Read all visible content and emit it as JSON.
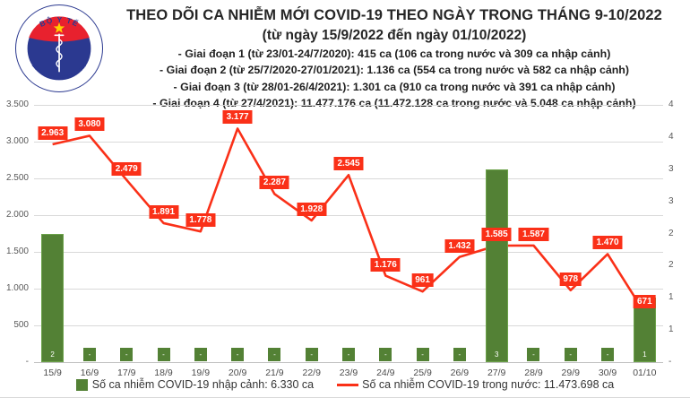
{
  "header": {
    "logo": {
      "top": "BỘ Y TẾ",
      "bottom": "MINISTRY OF HEALTH"
    },
    "title": "THEO DÕI CA NHIỄM MỚI COVID-19 THEO NGÀY TRONG THÁNG 9-10/2022",
    "subtitle": "(từ ngày 15/9/2022 đến ngày 01/10/2022)",
    "notes": [
      "- Giai đoạn 1 (từ 23/01-24/7/2020): 415 ca (106 ca trong nước và 309 ca nhập cảnh)",
      "- Giai đoạn 2 (từ 25/7/2020-27/01/2021): 1.136 ca (554 ca trong nước và 582 ca nhập cảnh)",
      "- Giai đoạn 3 (từ 28/01-26/4/2021): 1.301 ca (910 ca trong nước và 391 ca nhập cảnh)",
      "- Giai đoạn 4 (từ 27/4/2021): 11.477.176 ca (11.472.128 ca trong nước và 5.048 ca nhập cảnh)"
    ]
  },
  "chart_data": {
    "type": "combo-bar-line",
    "categories": [
      "15/9",
      "16/9",
      "17/9",
      "18/9",
      "19/9",
      "20/9",
      "21/9",
      "22/9",
      "23/9",
      "24/9",
      "25/9",
      "26/9",
      "27/9",
      "28/9",
      "29/9",
      "30/9",
      "01/10"
    ],
    "series": [
      {
        "name": "Số ca nhiễm COVID-19 nhập cảnh",
        "type": "bar",
        "axis": "right",
        "color": "#538135",
        "values": [
          2,
          0,
          0,
          0,
          0,
          0,
          0,
          0,
          0,
          0,
          0,
          0,
          3,
          0,
          0,
          0,
          1
        ],
        "labels": [
          "2",
          "-",
          "-",
          "-",
          "-",
          "-",
          "-",
          "-",
          "-",
          "-",
          "-",
          "-",
          "3",
          "-",
          "-",
          "-",
          "1"
        ]
      },
      {
        "name": "Số ca nhiễm COVID-19 trong nước",
        "type": "line",
        "axis": "left",
        "color": "#fa3018",
        "values": [
          2963,
          3080,
          2479,
          1891,
          1778,
          3177,
          2287,
          1928,
          2545,
          1176,
          961,
          1432,
          1585,
          1587,
          978,
          1470,
          671
        ],
        "labels": [
          "2.963",
          "3.080",
          "2.479",
          "1.891",
          "1.778",
          "3.177",
          "2.287",
          "1.928",
          "2.545",
          "1.176",
          "961",
          "1.432",
          "1.585",
          "1.587",
          "978",
          "1.470",
          "671"
        ]
      }
    ],
    "left_axis": {
      "max": 3500,
      "tick_values": [
        3500,
        3000,
        2500,
        2000,
        1500,
        1000,
        500,
        0
      ],
      "tick_labels": [
        "3.500",
        "3.000",
        "2.500",
        "2.000",
        "1.500",
        "1.000",
        "500",
        "-"
      ]
    },
    "right_axis": {
      "max": 4,
      "tick_values": [
        4,
        3.5,
        3,
        2.5,
        2,
        1.5,
        1,
        0.5,
        0
      ],
      "tick_labels": [
        "4",
        "4",
        "3",
        "3",
        "2",
        "2",
        "1",
        "1",
        "-"
      ]
    },
    "grid": true,
    "legend_position": "bottom"
  },
  "legend": {
    "imported": "Số ca nhiễm COVID-19 nhập cảnh: 6.330 ca",
    "domestic": "Số ca nhiễm COVID-19 trong nước: 11.473.698 ca"
  }
}
